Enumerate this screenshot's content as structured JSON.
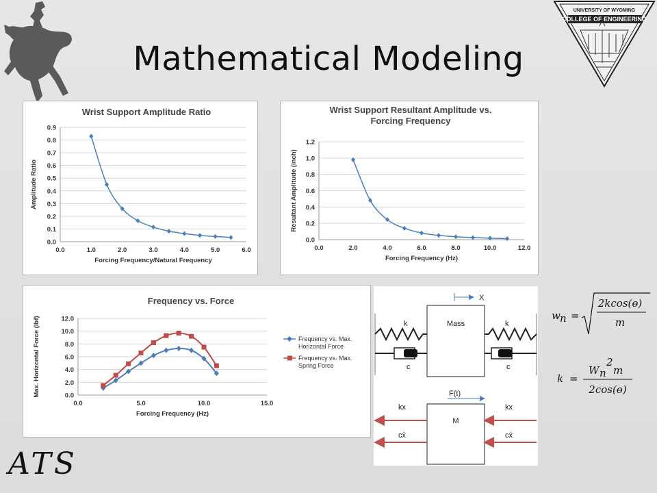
{
  "slide": {
    "title": "Mathematical Modeling",
    "logo_text": "ATS"
  },
  "seal": {
    "line1": "UNIVERSITY OF WYOMING",
    "line2": "COLLEGE OF ENGINEERING"
  },
  "charts": {
    "c1": {
      "type": "line",
      "title": "Wrist Support Amplitude Ratio",
      "xlabel": "Forcing Frequency/Natural Frequency",
      "ylabel": "Amplitude Ratio",
      "xlim": [
        0,
        6
      ],
      "ylim": [
        0,
        0.9
      ],
      "xticks": [
        "0.0",
        "1.0",
        "2.0",
        "3.0",
        "4.0",
        "5.0",
        "6.0"
      ],
      "yticks": [
        "0.0",
        "0.1",
        "0.2",
        "0.3",
        "0.4",
        "0.5",
        "0.6",
        "0.7",
        "0.8",
        "0.9"
      ],
      "x": [
        1.0,
        1.5,
        2.0,
        2.5,
        3.0,
        3.5,
        4.0,
        4.5,
        5.0,
        5.5
      ],
      "y": [
        0.83,
        0.45,
        0.26,
        0.165,
        0.115,
        0.083,
        0.064,
        0.05,
        0.041,
        0.034
      ],
      "color": "#4a7ebb"
    },
    "c2": {
      "type": "line",
      "title_lines": [
        "Wrist Support Resultant Amplitude vs.",
        "Forcing Frequency"
      ],
      "xlabel": "Forcing Frequency (Hz)",
      "ylabel": "Resultant Amplitude (inch)",
      "xlim": [
        0,
        12
      ],
      "ylim": [
        0,
        1.2
      ],
      "xticks": [
        "0.0",
        "2.0",
        "4.0",
        "6.0",
        "8.0",
        "10.0",
        "12.0"
      ],
      "yticks": [
        "0.0",
        "0.2",
        "0.4",
        "0.6",
        "0.8",
        "1.0",
        "1.2"
      ],
      "x": [
        2,
        3,
        4,
        5,
        6,
        7,
        8,
        9,
        10,
        11
      ],
      "y": [
        0.98,
        0.48,
        0.245,
        0.14,
        0.082,
        0.052,
        0.036,
        0.026,
        0.018,
        0.013
      ],
      "color": "#4a7ebb"
    },
    "c3": {
      "type": "line",
      "title": "Frequency vs. Force",
      "xlabel": "Forcing Frequency (Hz)",
      "ylabel": "Max. Horizontal Force (lbf)",
      "xlim": [
        0,
        15
      ],
      "ylim": [
        0,
        12
      ],
      "xticks": [
        "0.0",
        "5.0",
        "10.0",
        "15.0"
      ],
      "yticks": [
        "0.0",
        "2.0",
        "4.0",
        "6.0",
        "8.0",
        "10.0",
        "12.0"
      ],
      "legend_position": "right",
      "series": [
        {
          "name_lines": [
            "Frequency vs. Max.",
            "Horizontal Force"
          ],
          "color": "#4a7ebb",
          "marker": "diamond",
          "x": [
            2,
            3,
            4,
            5,
            6,
            7,
            8,
            9,
            10,
            11
          ],
          "y": [
            1.1,
            2.3,
            3.7,
            5.0,
            6.2,
            7.0,
            7.3,
            7.0,
            5.7,
            3.4
          ]
        },
        {
          "name_lines": [
            "Frequency vs. Max.",
            "Spring Force"
          ],
          "color": "#be4b48",
          "marker": "square",
          "x": [
            2,
            3,
            4,
            5,
            6,
            7,
            8,
            9,
            10,
            11
          ],
          "y": [
            1.5,
            3.1,
            4.9,
            6.6,
            8.2,
            9.3,
            9.7,
            9.2,
            7.5,
            4.6
          ]
        }
      ]
    }
  },
  "diagram": {
    "x_label": "X",
    "mass_label": "Mass",
    "spring_left": "k",
    "spring_right": "k",
    "damper_left": "c",
    "damper_right": "c",
    "force_label": "F(t)",
    "fbd_mass": "M",
    "kx_left": "kx",
    "kx_right": "kx",
    "cx_left": "cẋ",
    "cx_right": "cẋ"
  },
  "equations": {
    "wn_lhs": "w",
    "wn_sub": "n",
    "wn_num": "2kcos(ɵ)",
    "wn_den": "m",
    "k_lhs": "k",
    "k_num_w": "W",
    "k_num_sub": "n",
    "k_num_sup": "2",
    "k_num_m": "m",
    "k_den": "2cos(ɵ)",
    "equals": "="
  }
}
